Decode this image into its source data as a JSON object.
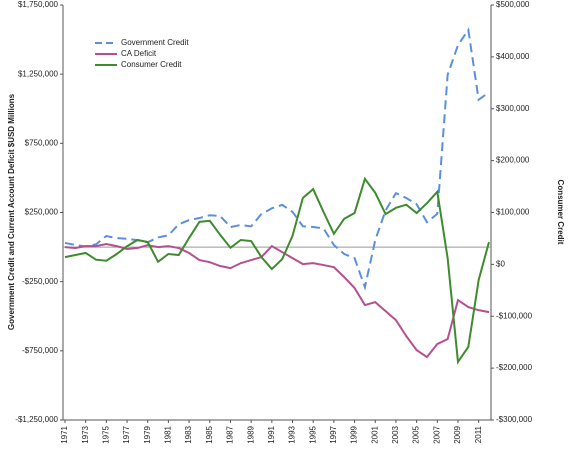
{
  "chart_data": {
    "type": "line",
    "y_label": "Government Credit and Current Account Deficit $USD Millions",
    "y2_label": "Consumer Credit",
    "x": [
      1971,
      1972,
      1973,
      1974,
      1975,
      1976,
      1977,
      1978,
      1979,
      1980,
      1981,
      1982,
      1983,
      1984,
      1985,
      1986,
      1987,
      1988,
      1989,
      1990,
      1991,
      1992,
      1993,
      1994,
      1995,
      1996,
      1997,
      1998,
      1999,
      2000,
      2001,
      2002,
      2003,
      2004,
      2005,
      2006,
      2007,
      2008,
      2009,
      2010,
      2011,
      2012
    ],
    "xlim": [
      1971,
      2012
    ],
    "xticks": [
      1971,
      1973,
      1975,
      1977,
      1979,
      1981,
      1983,
      1985,
      1987,
      1989,
      1991,
      1993,
      1995,
      1997,
      1999,
      2001,
      2003,
      2005,
      2007,
      2009,
      2011
    ],
    "ylim": [
      -1250000,
      1750000
    ],
    "yticks": [
      {
        "value": -1250000,
        "label": "-$1,250,000"
      },
      {
        "value": -750000,
        "label": "-$750,000"
      },
      {
        "value": -250000,
        "label": "-$250,000"
      },
      {
        "value": 250000,
        "label": "$250,000"
      },
      {
        "value": 750000,
        "label": "$750,000"
      },
      {
        "value": 1250000,
        "label": "$1,250,000"
      },
      {
        "value": 1750000,
        "label": "$1,750,000"
      }
    ],
    "y2lim": [
      -300000,
      500000
    ],
    "y2ticks": [
      {
        "value": -300000,
        "label": "-$300,000"
      },
      {
        "value": -200000,
        "label": "-$200,000"
      },
      {
        "value": -100000,
        "label": "-$100,000"
      },
      {
        "value": 0,
        "label": "$0"
      },
      {
        "value": 100000,
        "label": "$100,000"
      },
      {
        "value": 200000,
        "label": "$200,000"
      },
      {
        "value": 300000,
        "label": "$300,000"
      },
      {
        "value": 400000,
        "label": "$400,000"
      },
      {
        "value": 500000,
        "label": "$500,000"
      }
    ],
    "legend": "upper left",
    "series": [
      {
        "name": "Government Credit",
        "color": "#5b8fde",
        "dashed": true,
        "values": [
          30000,
          15000,
          5000,
          20000,
          80000,
          65000,
          60000,
          50000,
          35000,
          70000,
          85000,
          165000,
          195000,
          210000,
          230000,
          225000,
          145000,
          160000,
          150000,
          240000,
          280000,
          305000,
          255000,
          150000,
          145000,
          135000,
          15000,
          -50000,
          -80000,
          -290000,
          50000,
          265000,
          390000,
          355000,
          310000,
          180000,
          240000,
          1245000,
          1460000,
          1570000,
          1065000,
          1120000
        ]
      },
      {
        "name": "CA Deficit",
        "color": "#b5508f",
        "dashed": false,
        "values": [
          0,
          -7000,
          7000,
          7000,
          22000,
          7000,
          -14000,
          -7000,
          14000,
          0,
          7000,
          -7000,
          -43000,
          -94000,
          -109000,
          -137000,
          -152000,
          -116000,
          -94000,
          -72000,
          7000,
          -36000,
          -80000,
          -123000,
          -116000,
          -130000,
          -145000,
          -217000,
          -296000,
          -419000,
          -398000,
          -463000,
          -528000,
          -643000,
          -745000,
          -795000,
          -701000,
          -665000,
          -383000,
          -434000,
          -456000,
          -470000
        ]
      },
      {
        "name": "Consumer Credit",
        "color": "#3d8b2e",
        "dashed": false,
        "axis": "y2",
        "values": [
          14000,
          18000,
          22000,
          9000,
          7000,
          20000,
          35000,
          47000,
          43000,
          5000,
          20000,
          18000,
          51000,
          82000,
          84000,
          57000,
          32000,
          47000,
          45000,
          14000,
          -9000,
          10000,
          55000,
          128000,
          145000,
          101000,
          59000,
          88000,
          99000,
          165000,
          138000,
          97000,
          109000,
          115000,
          99000,
          118000,
          140000,
          12000,
          -188000,
          -159000,
          -30000,
          43000
        ]
      }
    ]
  }
}
